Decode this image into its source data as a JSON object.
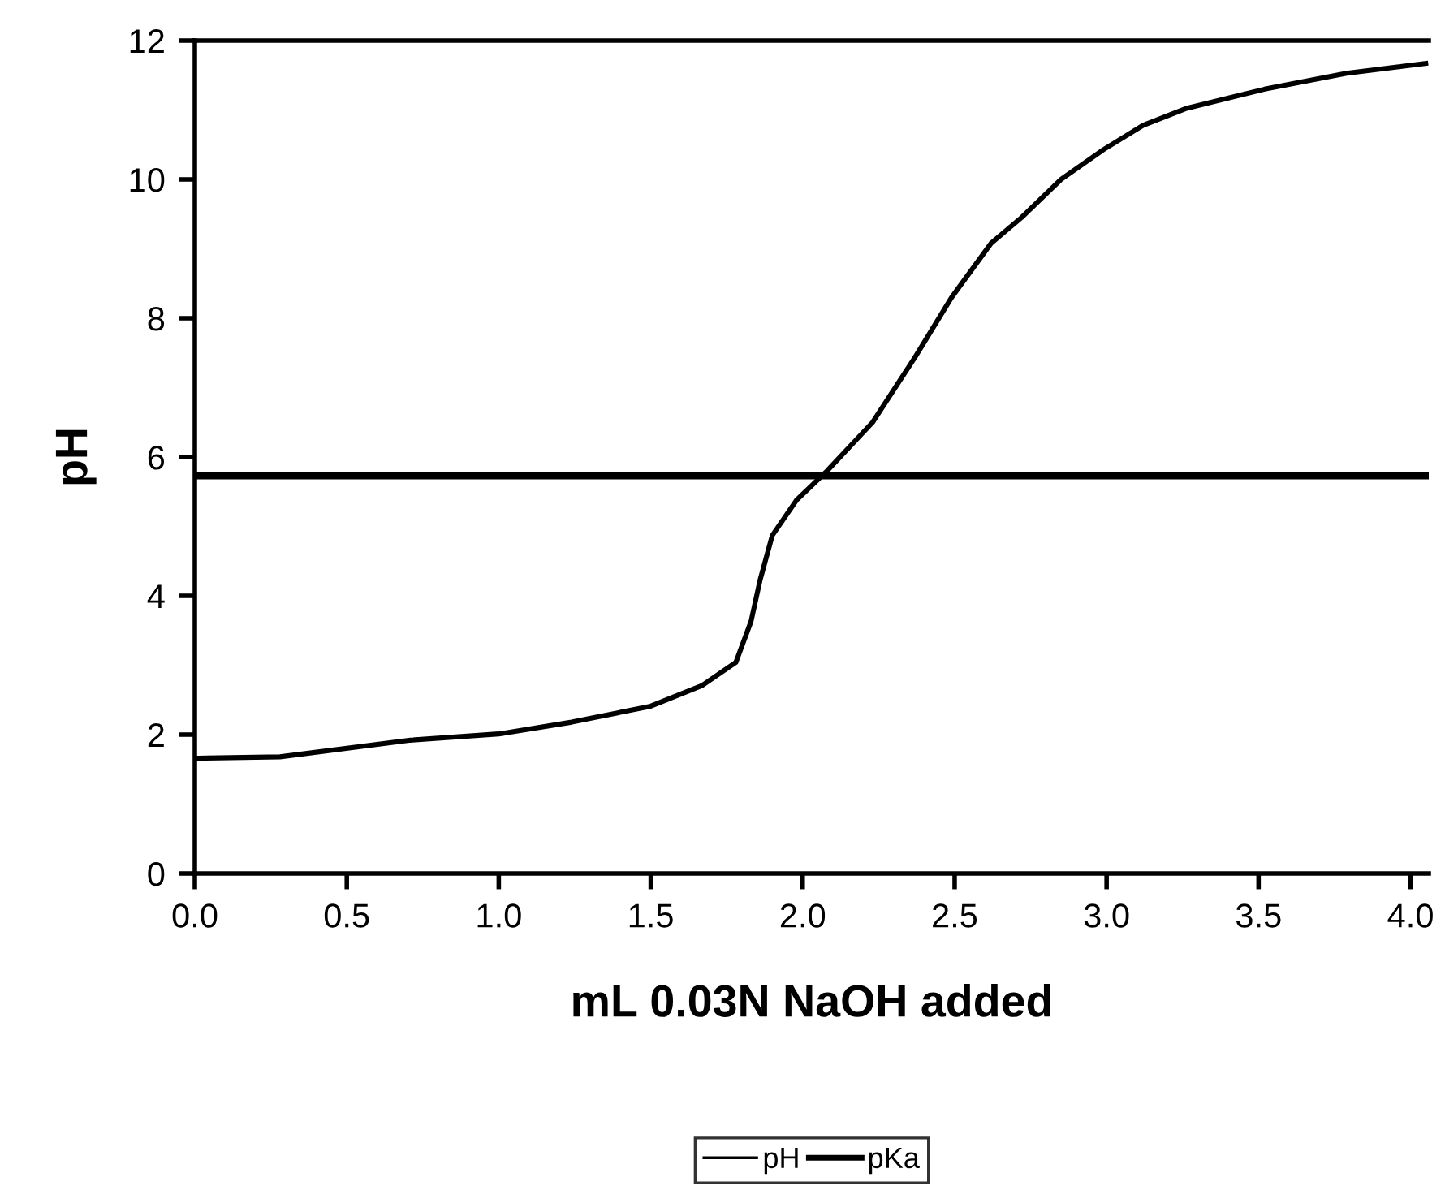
{
  "chart_data": {
    "type": "line",
    "xlabel": "mL 0.03N NaOH added",
    "ylabel": "pH",
    "xlim": [
      0,
      4.06
    ],
    "ylim": [
      0,
      12
    ],
    "xticks": [
      {
        "value": 0,
        "label": "0.0"
      },
      {
        "value": 0.5,
        "label": "0.5"
      },
      {
        "value": 1,
        "label": "1.0"
      },
      {
        "value": 1.5,
        "label": "1.5"
      },
      {
        "value": 2,
        "label": "2.0"
      },
      {
        "value": 2.5,
        "label": "2.5"
      },
      {
        "value": 3,
        "label": "3.0"
      },
      {
        "value": 3.5,
        "label": "3.5"
      },
      {
        "value": 4,
        "label": "4.0"
      }
    ],
    "yticks": [
      0,
      2,
      4,
      6,
      8,
      10,
      12
    ],
    "legend": "bottom",
    "marker": "none",
    "line_style": "solid",
    "series": [
      {
        "name": "pH",
        "color": "#000000",
        "x": [
          0.01,
          0.28,
          0.71,
          1.0,
          1.24,
          1.5,
          1.67,
          1.78,
          1.83,
          1.86,
          1.9,
          1.98,
          2.08,
          2.23,
          2.37,
          2.49,
          2.62,
          2.72,
          2.85,
          2.99,
          3.12,
          3.26,
          3.52,
          3.79,
          4.05
        ],
        "values": [
          1.66,
          1.68,
          1.92,
          2.01,
          2.18,
          2.41,
          2.71,
          3.04,
          3.63,
          4.23,
          4.87,
          5.38,
          5.8,
          6.5,
          7.44,
          8.3,
          9.08,
          9.45,
          10.0,
          10.43,
          10.78,
          11.02,
          11.3,
          11.53,
          11.67
        ]
      },
      {
        "name": "pKa",
        "color": "#000000",
        "x": [
          0,
          4.06
        ],
        "values": [
          5.73,
          5.73
        ]
      }
    ]
  }
}
